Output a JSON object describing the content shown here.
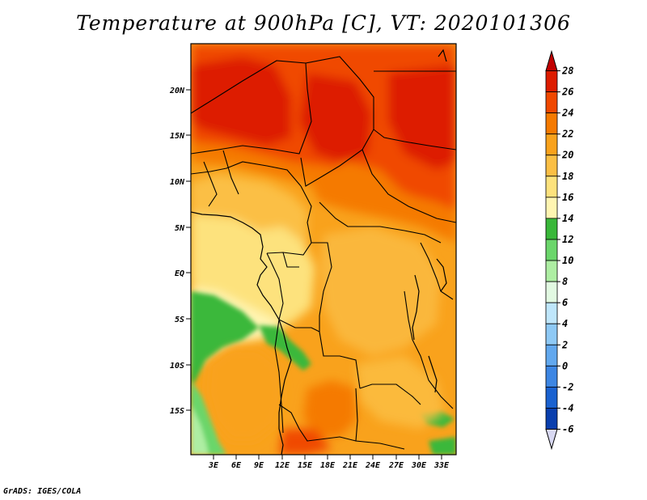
{
  "title": "Temperature at 900hPa [C], VT: 2020101306",
  "footer": "GrADS: IGES/COLA",
  "map": {
    "lat_labels": [
      "20N",
      "15N",
      "10N",
      "5N",
      "EQ",
      "5S",
      "10S",
      "15S"
    ],
    "lon_labels": [
      "3E",
      "6E",
      "9E",
      "12E",
      "15E",
      "18E",
      "21E",
      "24E",
      "27E",
      "30E",
      "33E"
    ]
  },
  "colorbar": {
    "labels": [
      "28",
      "26",
      "24",
      "22",
      "20",
      "18",
      "16",
      "14",
      "12",
      "10",
      "8",
      "6",
      "4",
      "2",
      "0",
      "-2",
      "-4",
      "-6"
    ],
    "colors": [
      "#dd1c00",
      "#f04800",
      "#f57a00",
      "#f9a21c",
      "#fbbf45",
      "#fde27d",
      "#fff5b2",
      "#3ab83a",
      "#6bd66b",
      "#aeeea3",
      "#e2f9e2",
      "#bfe6fb",
      "#8ec9f5",
      "#62a8ee",
      "#3d86e3",
      "#1a62d0",
      "#0a3fae",
      "#0a1b78",
      "#110060"
    ],
    "top_arrow_color": "#c00000",
    "bottom_arrow_color": "#d8d8f2"
  }
}
